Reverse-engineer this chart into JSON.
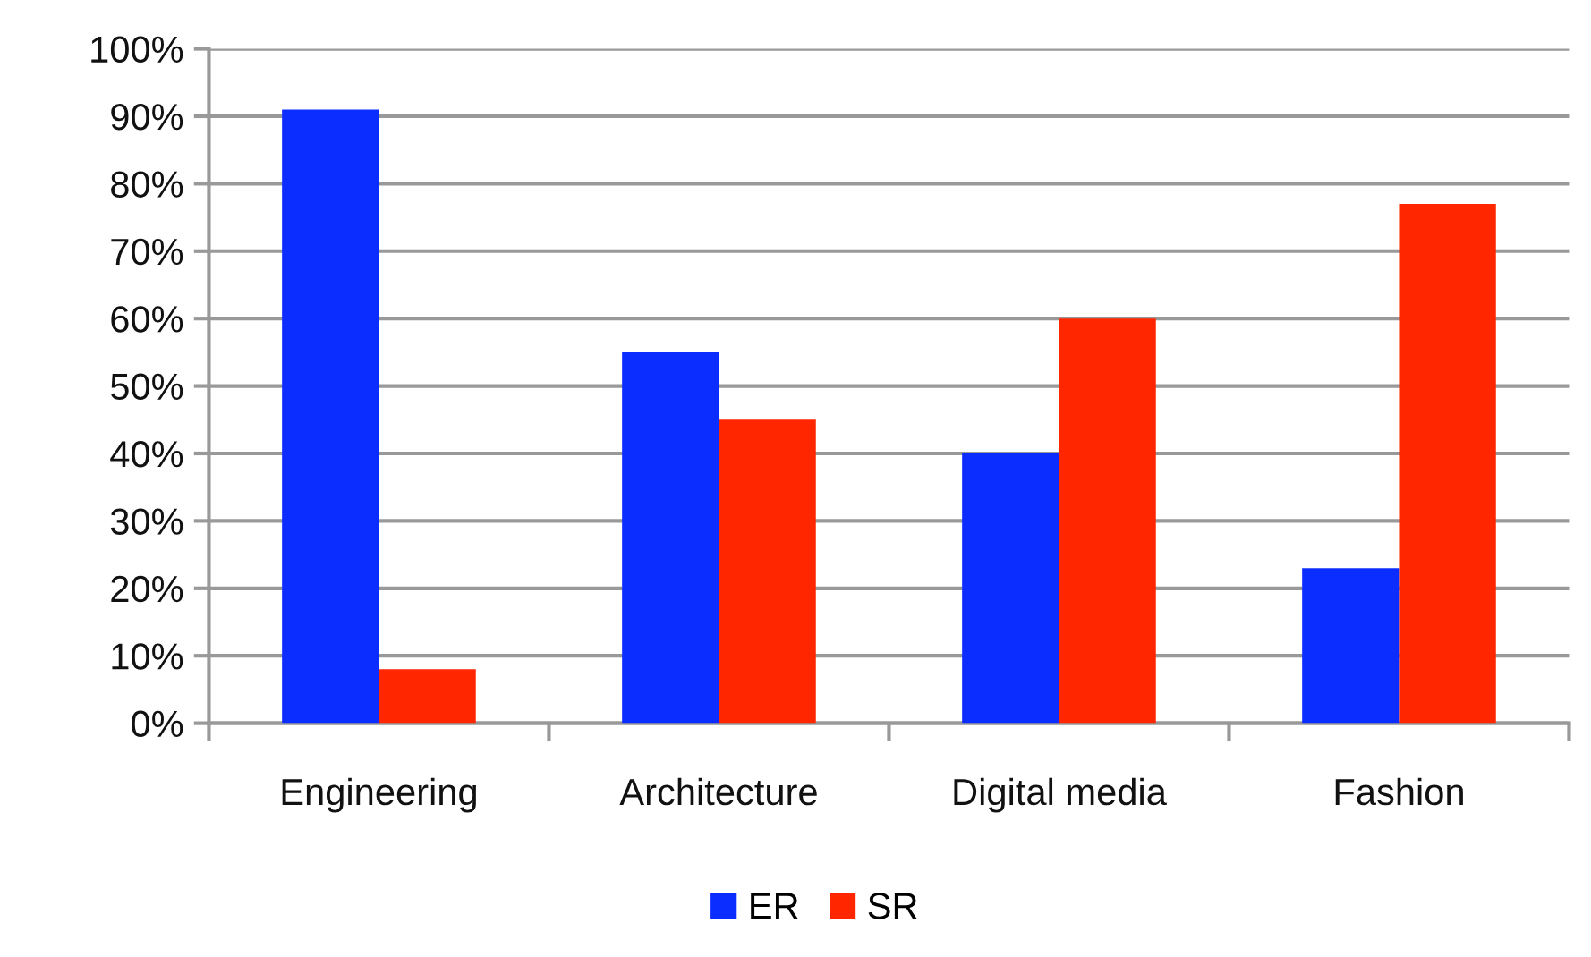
{
  "chart_data": {
    "type": "bar",
    "categories": [
      "Engineering",
      "Architecture",
      "Digital media",
      "Fashion"
    ],
    "series": [
      {
        "name": "ER",
        "color": "#0c2dff",
        "values": [
          91,
          55,
          40,
          23
        ]
      },
      {
        "name": "SR",
        "color": "#ff2600",
        "values": [
          8,
          45,
          60,
          77
        ]
      }
    ],
    "ylim": [
      0,
      100
    ],
    "yticks": [
      {
        "value": 0,
        "label": "0%"
      },
      {
        "value": 10,
        "label": "10%"
      },
      {
        "value": 20,
        "label": "20%"
      },
      {
        "value": 30,
        "label": "30%"
      },
      {
        "value": 40,
        "label": "40%"
      },
      {
        "value": 50,
        "label": "50%"
      },
      {
        "value": 60,
        "label": "60%"
      },
      {
        "value": 70,
        "label": "70%"
      },
      {
        "value": 80,
        "label": "80%"
      },
      {
        "value": 90,
        "label": "90%"
      },
      {
        "value": 100,
        "label": "100%"
      }
    ],
    "grid": "y",
    "legend": "bottom"
  }
}
